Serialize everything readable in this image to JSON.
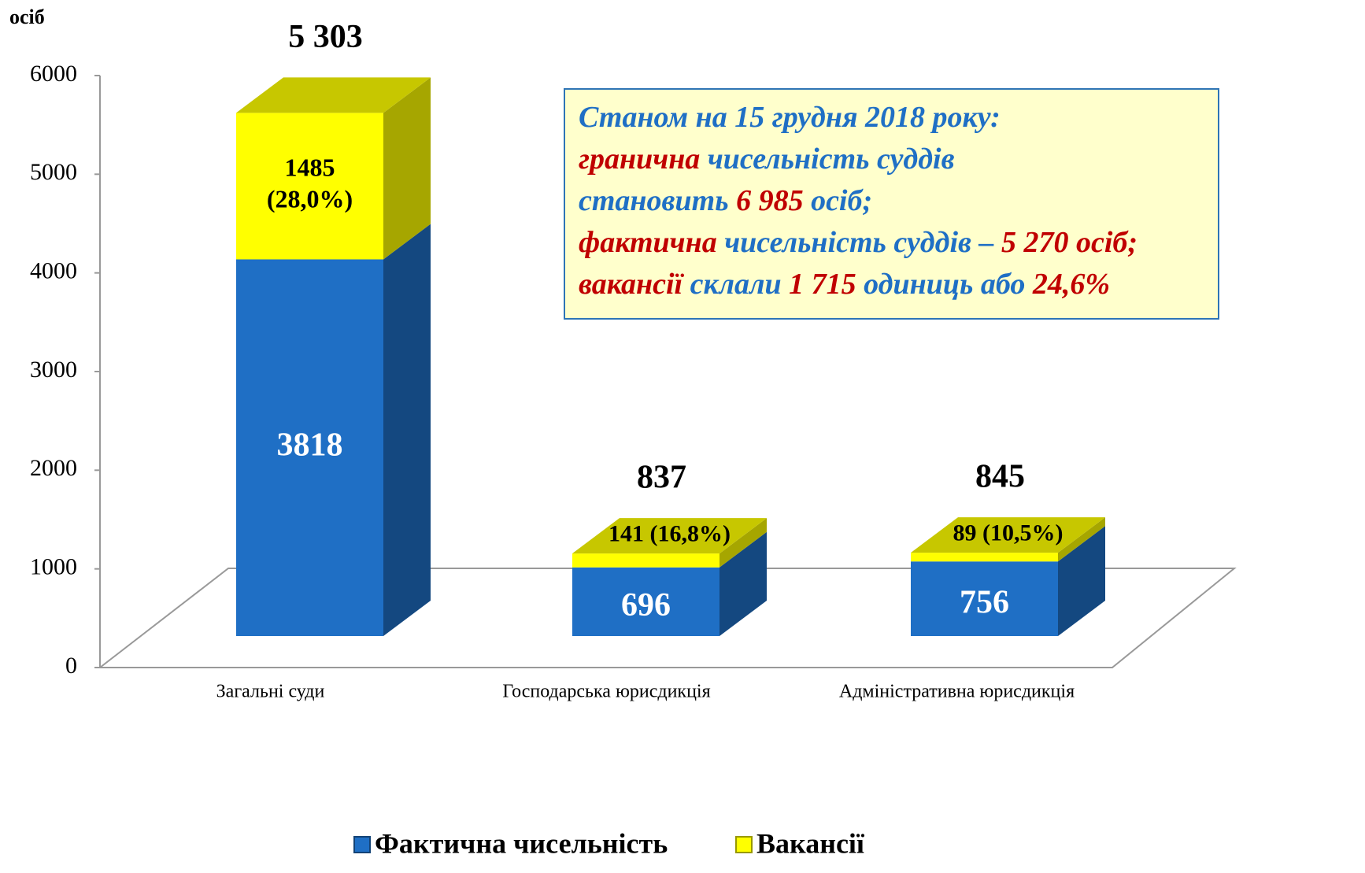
{
  "chart_data": {
    "type": "bar3d_stacked",
    "y_axis_label": "осіб",
    "categories": [
      "Загальні суди",
      "Господарська юрисдикція",
      "Адміністративна юрисдикція"
    ],
    "series": [
      {
        "name": "Фактична чисельність",
        "color": "#1f6fc5",
        "values": [
          3818,
          696,
          756
        ]
      },
      {
        "name": "Вакансії",
        "color": "#ffff00",
        "values": [
          1485,
          141,
          89
        ],
        "value_labels": [
          "1485 (28,0%)",
          "141 (16,8%)",
          "89 (10,5%)"
        ]
      }
    ],
    "total_labels": [
      "5 303",
      "837",
      "845"
    ],
    "ylim": [
      0,
      6000
    ],
    "yticks": [
      0,
      1000,
      2000,
      3000,
      4000,
      5000,
      6000
    ],
    "annotation": {
      "lines": [
        [
          {
            "text": "Станом на 15 грудня 2018 року:",
            "color": "#1f6fc5"
          }
        ],
        [
          {
            "text": "гранична",
            "color": "#c00000"
          },
          {
            "text": " чисельність суддів",
            "color": "#1f6fc5"
          }
        ],
        [
          {
            "text": "становить ",
            "color": "#1f6fc5"
          },
          {
            "text": "6 985",
            "color": "#c00000"
          },
          {
            "text": " осіб;",
            "color": "#1f6fc5"
          }
        ],
        [
          {
            "text": "фактична",
            "color": "#c00000"
          },
          {
            "text": " чисельність суддів – ",
            "color": "#1f6fc5"
          },
          {
            "text": "5 270 осіб;",
            "color": "#c00000"
          }
        ],
        [
          {
            "text": "вакансії",
            "color": "#c00000"
          },
          {
            "text": " склали ",
            "color": "#1f6fc5"
          },
          {
            "text": "1 715",
            "color": "#c00000"
          },
          {
            "text": " одиниць або ",
            "color": "#1f6fc5"
          },
          {
            "text": "24,6%",
            "color": "#c00000"
          }
        ]
      ]
    }
  }
}
